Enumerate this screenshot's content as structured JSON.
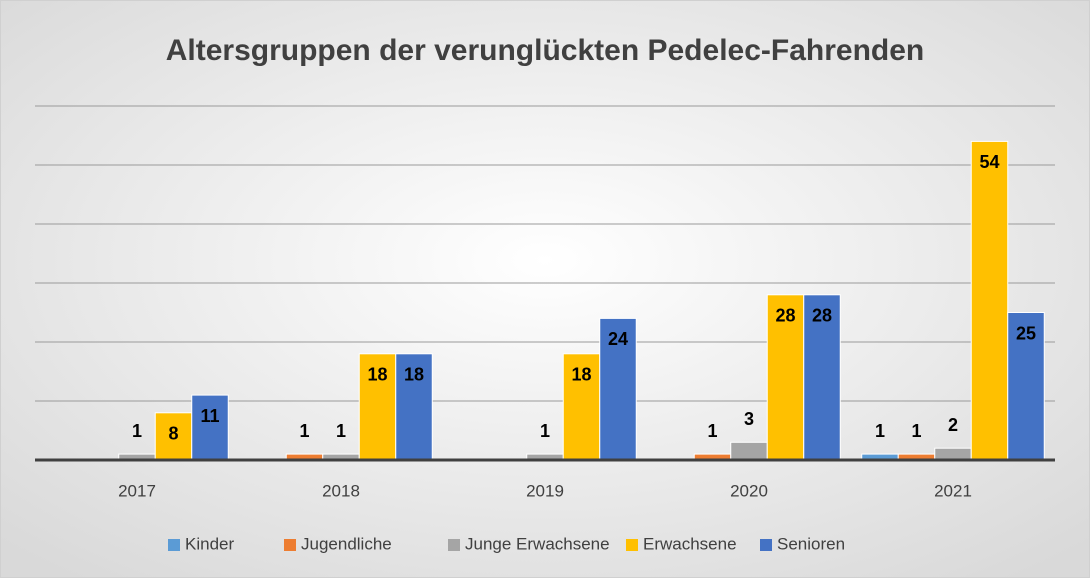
{
  "chart_data": {
    "type": "bar",
    "title": "Altersgruppen der verunglückten Pedelec-Fahrenden",
    "categories": [
      "2017",
      "2018",
      "2019",
      "2020",
      "2021"
    ],
    "series": [
      {
        "name": "Kinder",
        "color": "#5B9BD5",
        "values": [
          null,
          null,
          null,
          null,
          1
        ]
      },
      {
        "name": "Jugendliche",
        "color": "#ED7D31",
        "values": [
          null,
          1,
          null,
          1,
          1
        ]
      },
      {
        "name": "Junge Erwachsene",
        "color": "#A5A5A5",
        "values": [
          1,
          1,
          1,
          3,
          2
        ]
      },
      {
        "name": "Erwachsene",
        "color": "#FFC000",
        "values": [
          8,
          18,
          18,
          28,
          54
        ]
      },
      {
        "name": "Senioren",
        "color": "#4472C4",
        "values": [
          11,
          18,
          24,
          28,
          25
        ]
      }
    ],
    "ylim": [
      0,
      60
    ],
    "yticks": [
      0,
      10,
      20,
      30,
      40,
      50,
      60
    ],
    "grid": true,
    "legend": "bottom"
  }
}
